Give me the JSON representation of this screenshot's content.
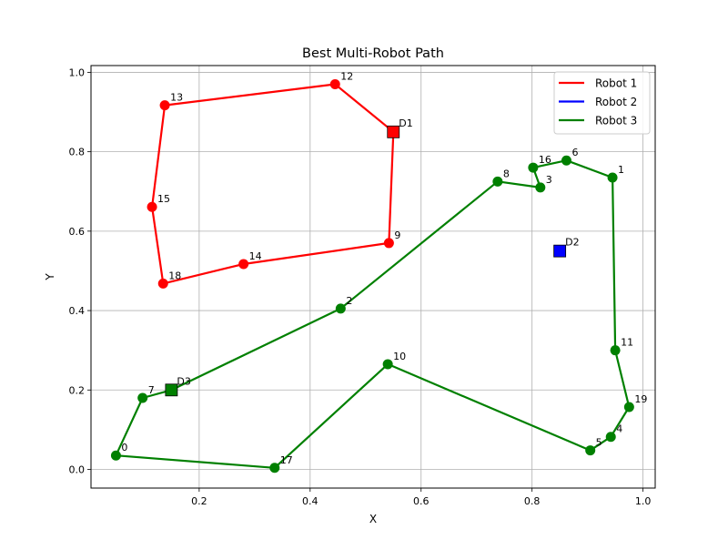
{
  "chart_data": {
    "type": "line",
    "title": "Best Multi-Robot Path",
    "xlabel": "X",
    "ylabel": "Y",
    "xlim": [
      0.005,
      1.022
    ],
    "ylim": [
      -0.047,
      1.017
    ],
    "xticks": [
      0.2,
      0.4,
      0.6,
      0.8,
      1.0
    ],
    "xtick_labels": [
      "0.2",
      "0.4",
      "0.6",
      "0.8",
      "1.0"
    ],
    "yticks": [
      0.0,
      0.2,
      0.4,
      0.6,
      0.8,
      1.0
    ],
    "ytick_labels": [
      "0.0",
      "0.2",
      "0.4",
      "0.6",
      "0.8",
      "1.0"
    ],
    "grid": true,
    "legend_position": "top-right",
    "legend": [
      {
        "label": "Robot 1",
        "color": "#ff0000"
      },
      {
        "label": "Robot 2",
        "color": "#0000ff"
      },
      {
        "label": "Robot 3",
        "color": "#008000"
      }
    ],
    "points": [
      {
        "id": "0",
        "x": 0.05,
        "y": 0.035
      },
      {
        "id": "1",
        "x": 0.945,
        "y": 0.735
      },
      {
        "id": "2",
        "x": 0.455,
        "y": 0.405
      },
      {
        "id": "3",
        "x": 0.815,
        "y": 0.71
      },
      {
        "id": "4",
        "x": 0.942,
        "y": 0.082
      },
      {
        "id": "5",
        "x": 0.905,
        "y": 0.048
      },
      {
        "id": "6",
        "x": 0.862,
        "y": 0.778
      },
      {
        "id": "7",
        "x": 0.098,
        "y": 0.18
      },
      {
        "id": "8",
        "x": 0.738,
        "y": 0.725
      },
      {
        "id": "9",
        "x": 0.542,
        "y": 0.57
      },
      {
        "id": "10",
        "x": 0.54,
        "y": 0.265
      },
      {
        "id": "11",
        "x": 0.95,
        "y": 0.3
      },
      {
        "id": "12",
        "x": 0.445,
        "y": 0.97
      },
      {
        "id": "13",
        "x": 0.138,
        "y": 0.917
      },
      {
        "id": "14",
        "x": 0.28,
        "y": 0.517
      },
      {
        "id": "15",
        "x": 0.115,
        "y": 0.661
      },
      {
        "id": "16",
        "x": 0.802,
        "y": 0.76
      },
      {
        "id": "17",
        "x": 0.336,
        "y": 0.004
      },
      {
        "id": "18",
        "x": 0.135,
        "y": 0.468
      },
      {
        "id": "19",
        "x": 0.975,
        "y": 0.157
      }
    ],
    "depots": [
      {
        "id": "D1",
        "x": 0.55,
        "y": 0.85,
        "color": "#ff0000"
      },
      {
        "id": "D2",
        "x": 0.85,
        "y": 0.55,
        "color": "#0000ff"
      },
      {
        "id": "D3",
        "x": 0.15,
        "y": 0.2,
        "color": "#008000"
      }
    ],
    "series": [
      {
        "name": "Robot 1",
        "color": "#ff0000",
        "route": [
          "D1",
          "9",
          "14",
          "18",
          "15",
          "13",
          "12",
          "D1"
        ]
      },
      {
        "name": "Robot 2",
        "color": "#0000ff",
        "route": []
      },
      {
        "name": "Robot 3",
        "color": "#008000",
        "route": [
          "D3",
          "7",
          "0",
          "17",
          "10",
          "5",
          "4",
          "19",
          "11",
          "1",
          "6",
          "16",
          "3",
          "8",
          "2",
          "D3"
        ]
      }
    ]
  }
}
